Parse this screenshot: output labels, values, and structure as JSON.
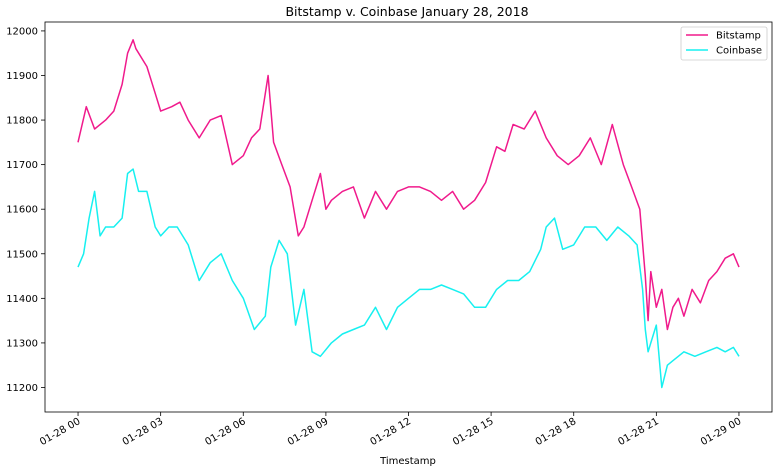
{
  "chart_data": {
    "type": "line",
    "title": "Bitstamp v. Coinbase January 28, 2018",
    "xlabel": "Timestamp",
    "ylabel": "",
    "x_tick_labels": [
      "01-28 00",
      "01-28 03",
      "01-28 06",
      "01-28 09",
      "01-28 12",
      "01-28 15",
      "01-28 18",
      "01-28 21",
      "01-29 00"
    ],
    "x_tick_hours": [
      0,
      3,
      6,
      9,
      12,
      15,
      18,
      21,
      24
    ],
    "xlim_hours": [
      -1.2,
      25.2
    ],
    "y_ticks": [
      11200,
      11300,
      11400,
      11500,
      11600,
      11700,
      11800,
      11900,
      12000
    ],
    "ylim": [
      11145,
      12020
    ],
    "grid": false,
    "legend_position": "top-right",
    "series": [
      {
        "name": "Bitstamp",
        "color": "#f01a8c",
        "x_hours": [
          0,
          0.3,
          0.6,
          1.0,
          1.3,
          1.6,
          1.8,
          2.0,
          2.1,
          2.5,
          2.8,
          3.0,
          3.4,
          3.7,
          4.0,
          4.4,
          4.8,
          5.2,
          5.6,
          6.0,
          6.3,
          6.6,
          6.9,
          7.1,
          7.4,
          7.7,
          8.0,
          8.2,
          8.5,
          8.8,
          9.0,
          9.2,
          9.6,
          10.0,
          10.4,
          10.8,
          11.2,
          11.6,
          12.0,
          12.4,
          12.8,
          13.2,
          13.6,
          14.0,
          14.4,
          14.8,
          15.2,
          15.5,
          15.8,
          16.2,
          16.6,
          17.0,
          17.4,
          17.8,
          18.2,
          18.6,
          19.0,
          19.4,
          19.8,
          20.1,
          20.4,
          20.6,
          20.7,
          20.8,
          21.0,
          21.2,
          21.4,
          21.6,
          21.8,
          22.0,
          22.3,
          22.6,
          22.9,
          23.2,
          23.5,
          23.8,
          24.0
        ],
        "values": [
          11750,
          11830,
          11780,
          11800,
          11820,
          11880,
          11950,
          11980,
          11960,
          11920,
          11860,
          11820,
          11830,
          11840,
          11800,
          11760,
          11800,
          11810,
          11700,
          11720,
          11760,
          11780,
          11900,
          11750,
          11700,
          11650,
          11540,
          11560,
          11620,
          11680,
          11600,
          11620,
          11640,
          11650,
          11580,
          11640,
          11600,
          11640,
          11650,
          11650,
          11640,
          11620,
          11640,
          11600,
          11620,
          11660,
          11740,
          11730,
          11790,
          11780,
          11820,
          11760,
          11720,
          11700,
          11720,
          11760,
          11700,
          11790,
          11700,
          11650,
          11600,
          11450,
          11350,
          11460,
          11380,
          11420,
          11330,
          11380,
          11400,
          11360,
          11420,
          11390,
          11440,
          11460,
          11490,
          11500,
          11470
        ]
      },
      {
        "name": "Coinbase",
        "color": "#17f0f0",
        "x_hours": [
          0,
          0.2,
          0.4,
          0.6,
          0.8,
          1.0,
          1.3,
          1.6,
          1.8,
          2.0,
          2.2,
          2.5,
          2.8,
          3.0,
          3.3,
          3.6,
          4.0,
          4.4,
          4.8,
          5.2,
          5.6,
          6.0,
          6.4,
          6.8,
          7.0,
          7.3,
          7.6,
          7.9,
          8.2,
          8.5,
          8.8,
          9.2,
          9.6,
          10.0,
          10.4,
          10.8,
          11.2,
          11.6,
          12.0,
          12.4,
          12.8,
          13.2,
          13.6,
          14.0,
          14.4,
          14.8,
          15.2,
          15.6,
          16.0,
          16.4,
          16.8,
          17.0,
          17.3,
          17.6,
          18.0,
          18.4,
          18.8,
          19.2,
          19.6,
          20.0,
          20.3,
          20.5,
          20.6,
          20.7,
          20.8,
          21.0,
          21.2,
          21.4,
          21.6,
          22.0,
          22.4,
          22.8,
          23.2,
          23.5,
          23.8,
          24.0
        ],
        "values": [
          11470,
          11500,
          11580,
          11640,
          11540,
          11560,
          11560,
          11580,
          11680,
          11690,
          11640,
          11640,
          11560,
          11540,
          11560,
          11560,
          11520,
          11440,
          11480,
          11500,
          11440,
          11400,
          11330,
          11360,
          11470,
          11530,
          11500,
          11340,
          11420,
          11280,
          11270,
          11300,
          11320,
          11330,
          11340,
          11380,
          11330,
          11380,
          11400,
          11420,
          11420,
          11430,
          11420,
          11410,
          11380,
          11380,
          11420,
          11440,
          11440,
          11460,
          11510,
          11560,
          11580,
          11510,
          11520,
          11560,
          11560,
          11530,
          11560,
          11540,
          11520,
          11420,
          11330,
          11280,
          11300,
          11340,
          11200,
          11250,
          11260,
          11280,
          11270,
          11280,
          11290,
          11280,
          11290,
          11270
        ]
      }
    ]
  }
}
